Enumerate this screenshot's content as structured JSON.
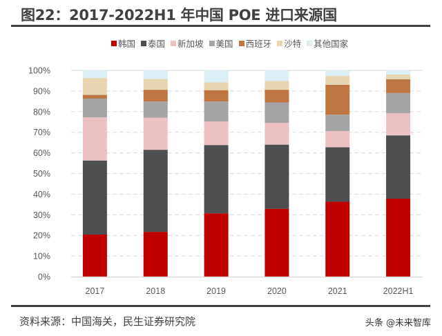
{
  "title": "图22：2017-2022H1 年中国 POE 进口来源国",
  "source": "资料来源：中国海关，民生证券研究院",
  "watermark": "头条 @未来智库",
  "chart_data": {
    "type": "bar",
    "stacked": true,
    "title": "图22：2017-2022H1 年中国 POE 进口来源国",
    "categories": [
      "2017",
      "2018",
      "2019",
      "2020",
      "2021",
      "2022H1"
    ],
    "ylim": [
      0,
      100
    ],
    "yticks": [
      "0%",
      "10%",
      "20%",
      "30%",
      "40%",
      "50%",
      "60%",
      "70%",
      "80%",
      "90%",
      "100%"
    ],
    "grid": true,
    "legend_position": "top",
    "series": [
      {
        "name": "韩国",
        "color": "#C00000",
        "values": [
          20.4,
          21.7,
          30.7,
          32.9,
          36.3,
          37.8
        ]
      },
      {
        "name": "泰国",
        "color": "#4D4E50",
        "values": [
          35.9,
          39.8,
          33.1,
          31.1,
          26.4,
          30.7
        ]
      },
      {
        "name": "新加坡",
        "color": "#EBC1C1",
        "values": [
          20.9,
          15.5,
          11.4,
          10.6,
          7.9,
          10.7
        ]
      },
      {
        "name": "美国",
        "color": "#A5A5A5",
        "values": [
          9.1,
          7.9,
          9.7,
          9.8,
          7.9,
          9.8
        ]
      },
      {
        "name": "西班牙",
        "color": "#BE7642",
        "values": [
          1.8,
          5.7,
          5.5,
          6.2,
          14.5,
          6.7
        ]
      },
      {
        "name": "沙特",
        "color": "#E6D5B0",
        "values": [
          8.2,
          5.3,
          3.8,
          4.2,
          4.3,
          2.3
        ]
      },
      {
        "name": "其他国家",
        "color": "#DAEEF3",
        "values": [
          3.7,
          4.1,
          5.8,
          5.2,
          2.7,
          2.0
        ]
      }
    ]
  }
}
